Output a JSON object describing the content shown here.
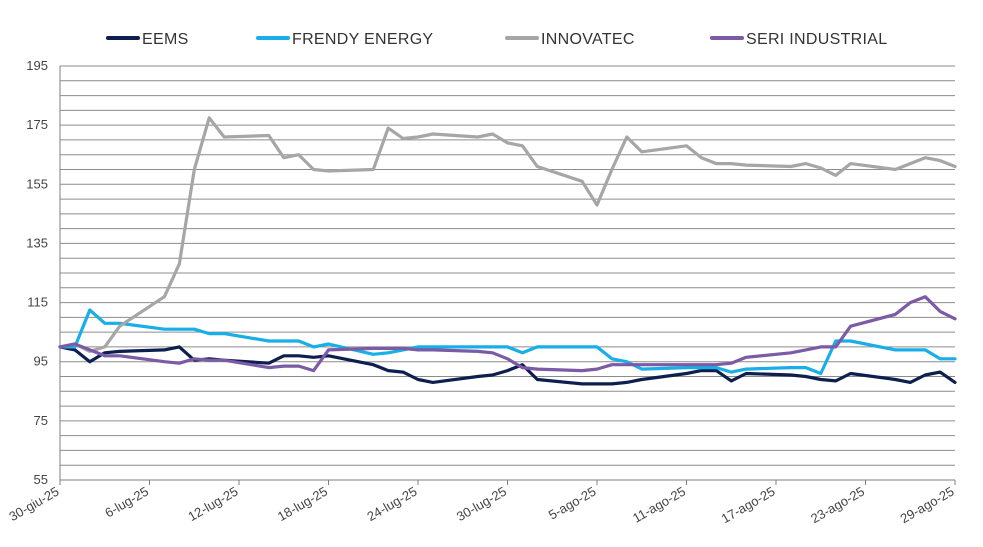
{
  "chart_data": {
    "type": "line",
    "ylim": [
      55,
      195
    ],
    "yticks": [
      55,
      75,
      95,
      115,
      135,
      155,
      175,
      195
    ],
    "xlim": [
      "2025-06-30",
      "2025-08-29"
    ],
    "xticks": [
      "30-giu-25",
      "6-lug-25",
      "12-lug-25",
      "18-lug-25",
      "24-lug-25",
      "30-lug-25",
      "5-ago-25",
      "11-ago-25",
      "17-ago-25",
      "23-ago-25",
      "29-ago-25"
    ],
    "grid": true,
    "legend": "top",
    "series": [
      {
        "name": "EEMS",
        "color": "#0d1f4f",
        "points": [
          [
            "2025-06-30",
            100
          ],
          [
            "2025-07-01",
            99
          ],
          [
            "2025-07-02",
            95
          ],
          [
            "2025-07-03",
            98
          ],
          [
            "2025-07-04",
            98.5
          ],
          [
            "2025-07-07",
            99
          ],
          [
            "2025-07-08",
            100
          ],
          [
            "2025-07-09",
            95.5
          ],
          [
            "2025-07-10",
            96
          ],
          [
            "2025-07-11",
            95.5
          ],
          [
            "2025-07-14",
            94.5
          ],
          [
            "2025-07-15",
            97
          ],
          [
            "2025-07-16",
            97
          ],
          [
            "2025-07-17",
            96.5
          ],
          [
            "2025-07-18",
            97
          ],
          [
            "2025-07-21",
            94
          ],
          [
            "2025-07-22",
            92
          ],
          [
            "2025-07-23",
            91.5
          ],
          [
            "2025-07-24",
            89
          ],
          [
            "2025-07-25",
            88
          ],
          [
            "2025-07-28",
            90
          ],
          [
            "2025-07-29",
            90.5
          ],
          [
            "2025-07-30",
            92
          ],
          [
            "2025-07-31",
            94
          ],
          [
            "2025-08-01",
            89
          ],
          [
            "2025-08-04",
            87.5
          ],
          [
            "2025-08-05",
            87.5
          ],
          [
            "2025-08-06",
            87.5
          ],
          [
            "2025-08-07",
            88
          ],
          [
            "2025-08-08",
            89
          ],
          [
            "2025-08-11",
            91
          ],
          [
            "2025-08-12",
            92
          ],
          [
            "2025-08-13",
            92
          ],
          [
            "2025-08-14",
            88.5
          ],
          [
            "2025-08-15",
            91
          ],
          [
            "2025-08-18",
            90.5
          ],
          [
            "2025-08-19",
            90
          ],
          [
            "2025-08-20",
            89
          ],
          [
            "2025-08-21",
            88.5
          ],
          [
            "2025-08-22",
            91
          ],
          [
            "2025-08-25",
            89
          ],
          [
            "2025-08-26",
            88
          ],
          [
            "2025-08-27",
            90.5
          ],
          [
            "2025-08-28",
            91.5
          ],
          [
            "2025-08-29",
            88
          ]
        ]
      },
      {
        "name": "FRENDY ENERGY",
        "color": "#18aee8",
        "points": [
          [
            "2025-06-30",
            100
          ],
          [
            "2025-07-01",
            100
          ],
          [
            "2025-07-02",
            112.5
          ],
          [
            "2025-07-03",
            108
          ],
          [
            "2025-07-04",
            108
          ],
          [
            "2025-07-07",
            106
          ],
          [
            "2025-07-08",
            106
          ],
          [
            "2025-07-09",
            106
          ],
          [
            "2025-07-10",
            104.5
          ],
          [
            "2025-07-11",
            104.5
          ],
          [
            "2025-07-14",
            102
          ],
          [
            "2025-07-15",
            102
          ],
          [
            "2025-07-16",
            102
          ],
          [
            "2025-07-17",
            100
          ],
          [
            "2025-07-18",
            101
          ],
          [
            "2025-07-21",
            97.5
          ],
          [
            "2025-07-22",
            98
          ],
          [
            "2025-07-23",
            99
          ],
          [
            "2025-07-24",
            100
          ],
          [
            "2025-07-25",
            100
          ],
          [
            "2025-07-28",
            100
          ],
          [
            "2025-07-29",
            100
          ],
          [
            "2025-07-30",
            100
          ],
          [
            "2025-07-31",
            98
          ],
          [
            "2025-08-01",
            100
          ],
          [
            "2025-08-04",
            100
          ],
          [
            "2025-08-05",
            100
          ],
          [
            "2025-08-06",
            96
          ],
          [
            "2025-08-07",
            95
          ],
          [
            "2025-08-08",
            92.5
          ],
          [
            "2025-08-11",
            93
          ],
          [
            "2025-08-12",
            93
          ],
          [
            "2025-08-13",
            93
          ],
          [
            "2025-08-14",
            91.5
          ],
          [
            "2025-08-15",
            92.5
          ],
          [
            "2025-08-18",
            93
          ],
          [
            "2025-08-19",
            93
          ],
          [
            "2025-08-20",
            91
          ],
          [
            "2025-08-21",
            102
          ],
          [
            "2025-08-22",
            102
          ],
          [
            "2025-08-25",
            99
          ],
          [
            "2025-08-26",
            99
          ],
          [
            "2025-08-27",
            99
          ],
          [
            "2025-08-28",
            96
          ],
          [
            "2025-08-29",
            96
          ]
        ]
      },
      {
        "name": "INNOVATEC",
        "color": "#a6a6a6",
        "points": [
          [
            "2025-06-30",
            100
          ],
          [
            "2025-07-01",
            101
          ],
          [
            "2025-07-02",
            98.5
          ],
          [
            "2025-07-03",
            100
          ],
          [
            "2025-07-04",
            107
          ],
          [
            "2025-07-07",
            117
          ],
          [
            "2025-07-08",
            128
          ],
          [
            "2025-07-09",
            160
          ],
          [
            "2025-07-10",
            177.5
          ],
          [
            "2025-07-11",
            171
          ],
          [
            "2025-07-14",
            171.5
          ],
          [
            "2025-07-15",
            164
          ],
          [
            "2025-07-16",
            165
          ],
          [
            "2025-07-17",
            160
          ],
          [
            "2025-07-18",
            159.5
          ],
          [
            "2025-07-21",
            160
          ],
          [
            "2025-07-22",
            174
          ],
          [
            "2025-07-23",
            170.5
          ],
          [
            "2025-07-24",
            171
          ],
          [
            "2025-07-25",
            172
          ],
          [
            "2025-07-28",
            171
          ],
          [
            "2025-07-29",
            172
          ],
          [
            "2025-07-30",
            169
          ],
          [
            "2025-07-31",
            168
          ],
          [
            "2025-08-01",
            161
          ],
          [
            "2025-08-04",
            156
          ],
          [
            "2025-08-05",
            148
          ],
          [
            "2025-08-06",
            160
          ],
          [
            "2025-08-07",
            171
          ],
          [
            "2025-08-08",
            166
          ],
          [
            "2025-08-11",
            168
          ],
          [
            "2025-08-12",
            164
          ],
          [
            "2025-08-13",
            162
          ],
          [
            "2025-08-14",
            162
          ],
          [
            "2025-08-15",
            161.5
          ],
          [
            "2025-08-18",
            161
          ],
          [
            "2025-08-19",
            162
          ],
          [
            "2025-08-20",
            160.5
          ],
          [
            "2025-08-21",
            158
          ],
          [
            "2025-08-22",
            162
          ],
          [
            "2025-08-25",
            160
          ],
          [
            "2025-08-26",
            162
          ],
          [
            "2025-08-27",
            164
          ],
          [
            "2025-08-28",
            163
          ],
          [
            "2025-08-29",
            161
          ]
        ]
      },
      {
        "name": "SERI INDUSTRIAL",
        "color": "#7b5aa6",
        "points": [
          [
            "2025-06-30",
            100
          ],
          [
            "2025-07-01",
            101
          ],
          [
            "2025-07-02",
            99
          ],
          [
            "2025-07-03",
            97
          ],
          [
            "2025-07-04",
            97
          ],
          [
            "2025-07-07",
            95
          ],
          [
            "2025-07-08",
            94.5
          ],
          [
            "2025-07-09",
            96
          ],
          [
            "2025-07-10",
            95.5
          ],
          [
            "2025-07-11",
            95.5
          ],
          [
            "2025-07-14",
            93
          ],
          [
            "2025-07-15",
            93.5
          ],
          [
            "2025-07-16",
            93.5
          ],
          [
            "2025-07-17",
            92
          ],
          [
            "2025-07-18",
            99
          ],
          [
            "2025-07-21",
            99.5
          ],
          [
            "2025-07-22",
            99.5
          ],
          [
            "2025-07-23",
            99.5
          ],
          [
            "2025-07-24",
            99
          ],
          [
            "2025-07-25",
            99
          ],
          [
            "2025-07-28",
            98.5
          ],
          [
            "2025-07-29",
            98
          ],
          [
            "2025-07-30",
            96
          ],
          [
            "2025-07-31",
            93
          ],
          [
            "2025-08-01",
            92.5
          ],
          [
            "2025-08-04",
            92
          ],
          [
            "2025-08-05",
            92.5
          ],
          [
            "2025-08-06",
            94
          ],
          [
            "2025-08-07",
            94
          ],
          [
            "2025-08-08",
            94
          ],
          [
            "2025-08-11",
            94
          ],
          [
            "2025-08-12",
            94
          ],
          [
            "2025-08-13",
            94
          ],
          [
            "2025-08-14",
            94.5
          ],
          [
            "2025-08-15",
            96.5
          ],
          [
            "2025-08-18",
            98
          ],
          [
            "2025-08-19",
            99
          ],
          [
            "2025-08-20",
            100
          ],
          [
            "2025-08-21",
            100
          ],
          [
            "2025-08-22",
            107
          ],
          [
            "2025-08-25",
            111
          ],
          [
            "2025-08-26",
            115
          ],
          [
            "2025-08-27",
            117
          ],
          [
            "2025-08-28",
            112
          ],
          [
            "2025-08-29",
            109.5
          ]
        ]
      }
    ]
  }
}
